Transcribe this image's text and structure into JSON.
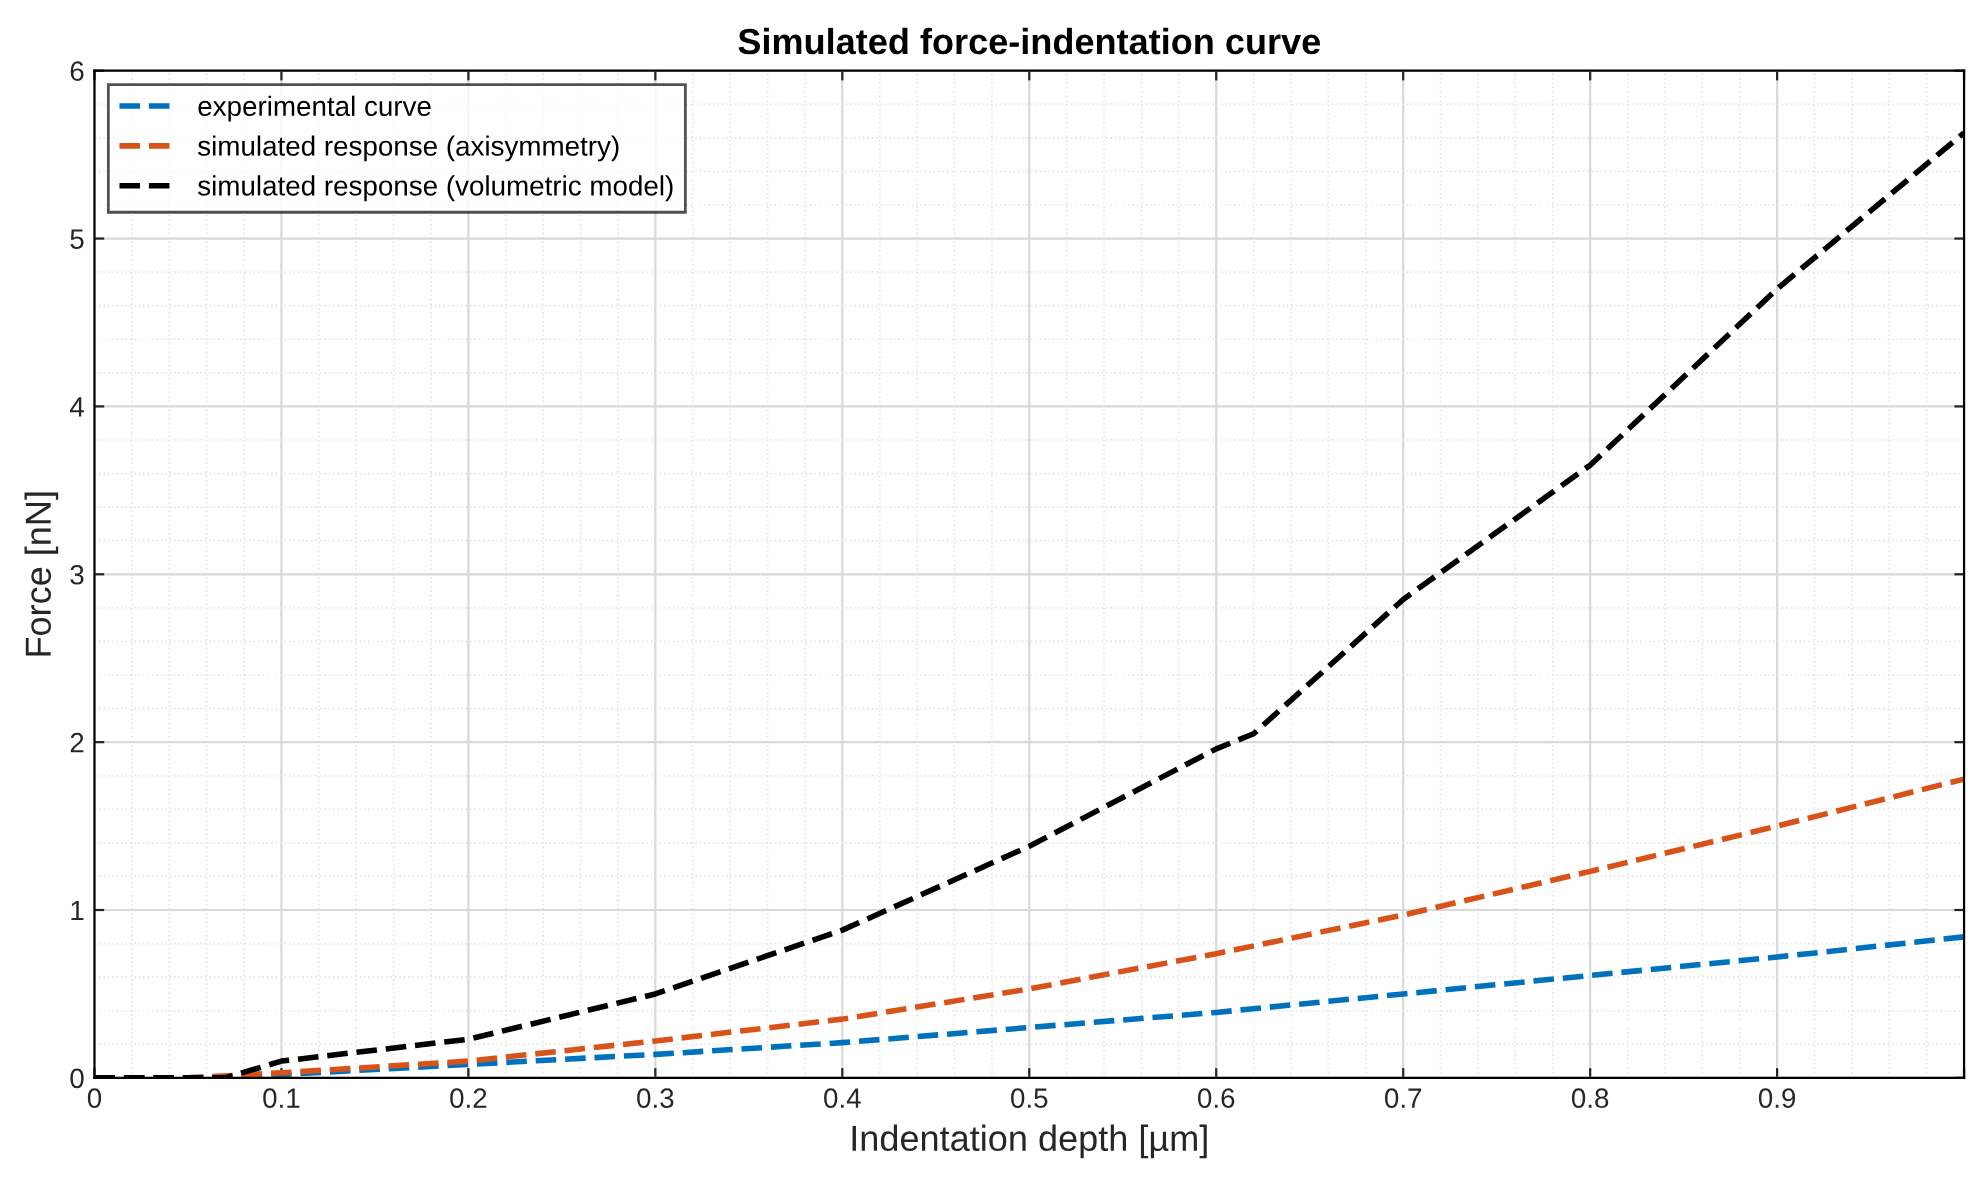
{
  "chart_data": {
    "type": "line",
    "title": "Simulated force-indentation curve",
    "xlabel": "Indentation depth [µm]",
    "ylabel": "Force [nN]",
    "xlim": [
      0,
      1
    ],
    "ylim": [
      0,
      6
    ],
    "xticks": [
      0,
      0.1,
      0.2,
      0.3,
      0.4,
      0.5,
      0.6,
      0.7,
      0.8,
      0.9,
      {
        "value": 1,
        "label": null
      }
    ],
    "yticks": [
      0,
      1,
      2,
      3,
      4,
      5,
      6
    ],
    "grid": true,
    "legend": "top left",
    "line_style": "dashed",
    "marker": "none",
    "series": [
      {
        "name": "experimental curve",
        "color": "#0072bd",
        "x": [
          0,
          0.05,
          0.1,
          0.2,
          0.3,
          0.4,
          0.5,
          0.6,
          0.7,
          0.8,
          0.9,
          1.0
        ],
        "values": [
          0,
          0,
          0.02,
          0.08,
          0.14,
          0.21,
          0.3,
          0.39,
          0.5,
          0.61,
          0.72,
          0.84
        ]
      },
      {
        "name": "simulated response (axisymmetry)",
        "color": "#d95319",
        "x": [
          0,
          0.05,
          0.1,
          0.2,
          0.3,
          0.4,
          0.5,
          0.6,
          0.7,
          0.8,
          0.9,
          1.0
        ],
        "values": [
          0,
          0,
          0.03,
          0.1,
          0.22,
          0.35,
          0.53,
          0.74,
          0.97,
          1.23,
          1.5,
          1.78
        ]
      },
      {
        "name": "simulated response (volumetric model)",
        "color": "#000000",
        "x": [
          0,
          0.07,
          0.1,
          0.2,
          0.3,
          0.4,
          0.5,
          0.6,
          0.62,
          0.7,
          0.8,
          0.9,
          1.0
        ],
        "values": [
          0,
          0,
          0.1,
          0.23,
          0.5,
          0.88,
          1.38,
          1.96,
          2.05,
          2.85,
          3.65,
          4.7,
          5.63
        ]
      }
    ]
  }
}
